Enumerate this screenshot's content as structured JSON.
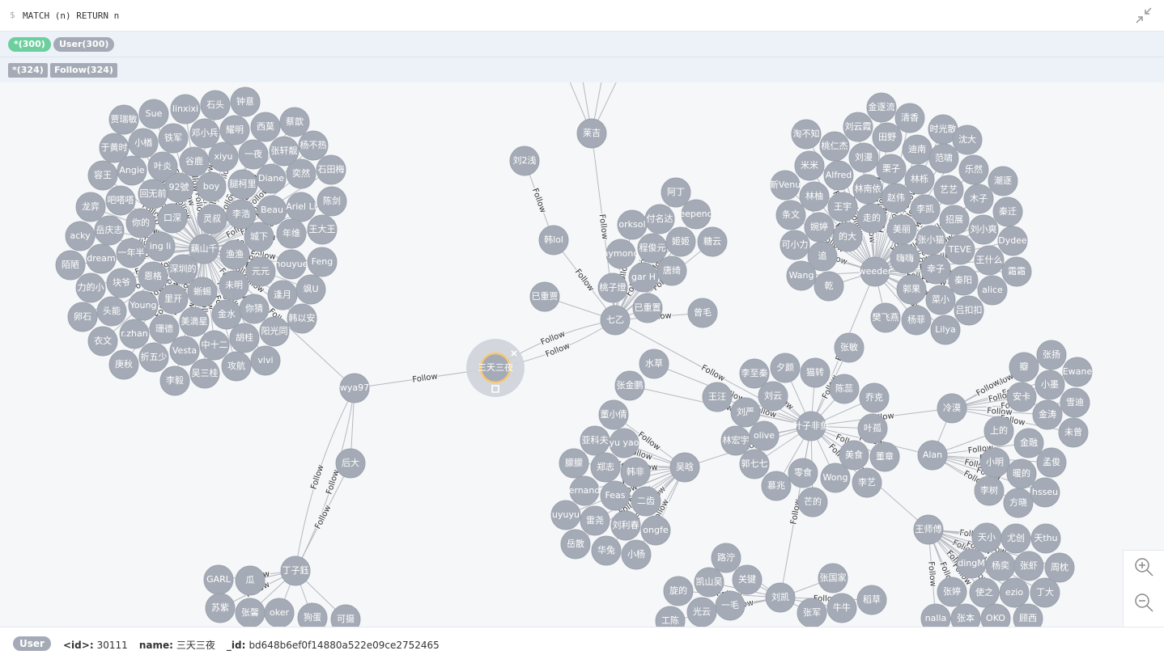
{
  "editor": {
    "prompt": "$",
    "query": "MATCH (n) RETURN n"
  },
  "node_labels": [
    "*(300)",
    "User(300)"
  ],
  "relationship_types": [
    "*(324)",
    "Follow(324)"
  ],
  "graph": {
    "edge_caption": "Follow",
    "nodes": [
      "三天三夜",
      "wya97",
      "后大",
      "丁子鈺",
      "刘2浅",
      "韩lol",
      "莱吉",
      "七乙",
      "叶子非鱼",
      "weeder",
      "藕山千",
      "冷漠",
      "Alan",
      "王师傅",
      "刘凯",
      "吴晗",
      "已重置",
      "曾毛"
    ],
    "clusters": [
      {
        "members": [
          "贾瑞敏",
          "Sue",
          "linxixi",
          "石头",
          "钟意",
          "蔡歆",
          "小楢",
          "铁军",
          "邓小兵",
          "耀明",
          "西莫",
          "杨不热",
          "于黄时",
          "叶炎",
          "谷鹿",
          "xiyu",
          "一夜",
          "张轩靓",
          "石田梅",
          "容王",
          "Angie",
          "92號",
          "boy",
          "腿柯里",
          "Diane",
          "奕然",
          "吧嗒嗒",
          "回无前",
          "灵叔",
          "李浩",
          "Beau",
          "Ariel Li",
          "陈剑",
          "龙弈",
          "你的",
          "口深",
          "城下",
          "年维",
          "王大王",
          "acky",
          "岳庆志",
          "一年半",
          "ing li",
          "渔渔",
          "Feng",
          "陌陋",
          "dream",
          "恩格",
          "深圳的",
          "元元",
          "houyue",
          "力的小",
          "块爷",
          "里开",
          "蜥蜴",
          "未明",
          "逢月",
          "飒U",
          "卵石",
          "头能",
          "Young",
          "金水",
          "你猜",
          "韩以安",
          "衣文",
          "r.zhan",
          "珊德",
          "美滴星",
          "胡桂",
          "阳光同",
          "庚秋",
          "折五少",
          "Vesta",
          "中十二",
          "攻航",
          "vivi",
          "李毅",
          "吴三桂"
        ]
      },
      {
        "members": [
          "桃子燈",
          "已重贾",
          "aymond",
          "orksol",
          "付名达",
          "阿丁",
          "eepend",
          "程俊元",
          "姬姬",
          "糖云",
          "唐绮",
          "gar H"
        ]
      },
      {
        "members": [
          "金逐流",
          "清香",
          "刘云霞",
          "时光散",
          "淘不知",
          "田野",
          "沈大",
          "桃仁杰",
          "迪南",
          "刘漫",
          "范啸",
          "米米",
          "栗子",
          "乐然",
          "Alfred",
          "林栎",
          "潮逐",
          "新Venu",
          "艺艺",
          "林柚",
          "林南依",
          "赵伟",
          "木子",
          "条文",
          "王宇",
          "李凯",
          "秦迁",
          "走的",
          "招展",
          "婉婷",
          "美丽",
          "刘小爽",
          "可小力",
          "的大",
          "张小猫",
          "Dydee",
          "追",
          "嗨嗨",
          "TEVE",
          "王什么",
          "Wang",
          "乾",
          "郭果",
          "幸子",
          "秦阳",
          "霜霜",
          "alice",
          "菜小",
          "樊飞燕",
          "吕扣扣",
          "杨菲",
          "Lilya"
        ]
      },
      {
        "members": [
          "水草",
          "张金鹏",
          "王汪",
          "李至秦",
          "夕颜",
          "张敏",
          "猫转",
          "刘云",
          "陈蕊",
          "乔克",
          "刘严",
          "叶孤",
          "林宏宇",
          "olive",
          "美食",
          "董章",
          "郭七七",
          "零食",
          "Wong",
          "李艺",
          "慕兆",
          "芒的"
        ]
      },
      {
        "members": [
          "张扬",
          "瓣",
          "Ewane",
          "小墨",
          "安卡",
          "雪迪",
          "金涛",
          "未曾"
        ]
      },
      {
        "members": [
          "上的",
          "金融",
          "小明",
          "孟俊",
          "暖的",
          "李树",
          "hsseu",
          "方晓"
        ]
      },
      {
        "members": [
          "董小倩",
          "亚科夫",
          "yu yao",
          "朦朦",
          "郑志",
          "韩非",
          "ernand",
          "Feas",
          "二齿",
          "uyuyu",
          "雷尧",
          "刘利春",
          "ongfe",
          "岳散",
          "华兔",
          "小杨"
        ]
      },
      {
        "members": [
          "路泞",
          "关键",
          "凯山吴",
          "旋的",
          "一毛",
          "张国家",
          "稻草",
          "牛牛",
          "张军",
          "光云",
          "工陈"
        ]
      },
      {
        "members": [
          "天小",
          "尤创",
          "天thu",
          "dingM",
          "杨奕",
          "张虾",
          "周枕",
          "张婷",
          "使之",
          "ezio",
          "丁大",
          "nalla",
          "张本",
          "OKO",
          "顾西"
        ]
      },
      {
        "members": [
          "GARL",
          "瓜",
          "苏紫",
          "张馨",
          "oker",
          "狗蛋",
          "可摄"
        ]
      }
    ]
  },
  "inspector": {
    "label": "User",
    "properties": [
      {
        "key": "<id>:",
        "value": 30111
      },
      {
        "key": "name:",
        "value": "三天三夜"
      },
      {
        "key": "_id:",
        "value": "bd648b6ef0f14880a522e09ce2752465"
      }
    ]
  }
}
